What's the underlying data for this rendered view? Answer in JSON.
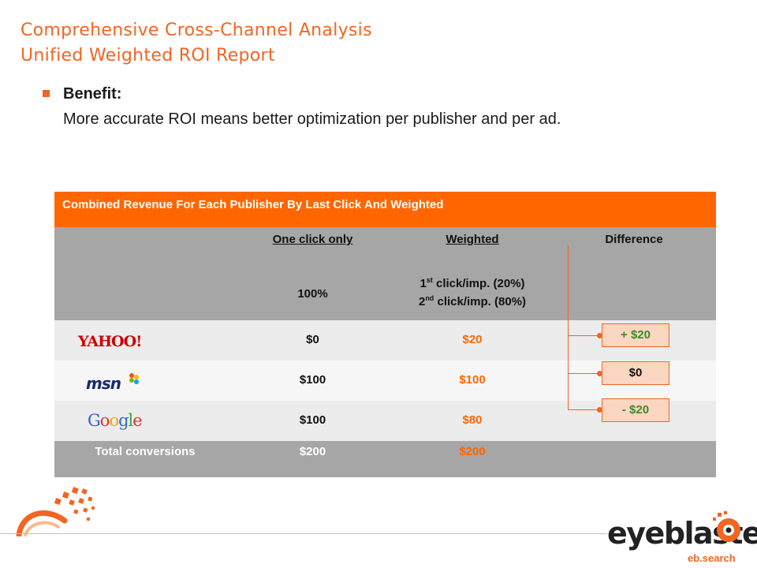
{
  "header": {
    "title_line1": "Comprehensive Cross-Channel Analysis",
    "title_line2": "Unified Weighted ROI Report"
  },
  "benefit": {
    "heading": "Benefit:",
    "text": "More accurate ROI means better optimization per publisher and per ad."
  },
  "table": {
    "title": "Combined Revenue For Each Publisher By Last Click And Weighted",
    "columns": {
      "one_click": "One click only",
      "weighted": "Weighted",
      "difference": "Difference"
    },
    "subheader": {
      "one_click": "100%",
      "weighted_line1_num": "1",
      "weighted_line1_sup": "st",
      "weighted_line1_rest": " click/imp. (20%)",
      "weighted_line2_num": "2",
      "weighted_line2_sup": "nd",
      "weighted_line2_rest": " click/imp. (80%)"
    },
    "rows": [
      {
        "publisher": "Yahoo!",
        "one_click": "$0",
        "weighted": "$20",
        "difference": "+ $20"
      },
      {
        "publisher": "msn",
        "one_click": "$100",
        "weighted": "$100",
        "difference": "$0"
      },
      {
        "publisher": "Google",
        "one_click": "$100",
        "weighted": "$80",
        "difference": "- $20"
      }
    ],
    "total": {
      "label": "Total conversions",
      "one_click": "$200",
      "weighted": "$200"
    }
  },
  "footer": {
    "brand": "eyeblaster",
    "sub": "eb.search"
  },
  "colors": {
    "accent": "#ff6600",
    "gray": "#a6a6a6",
    "positive": "#3a8a2a"
  }
}
